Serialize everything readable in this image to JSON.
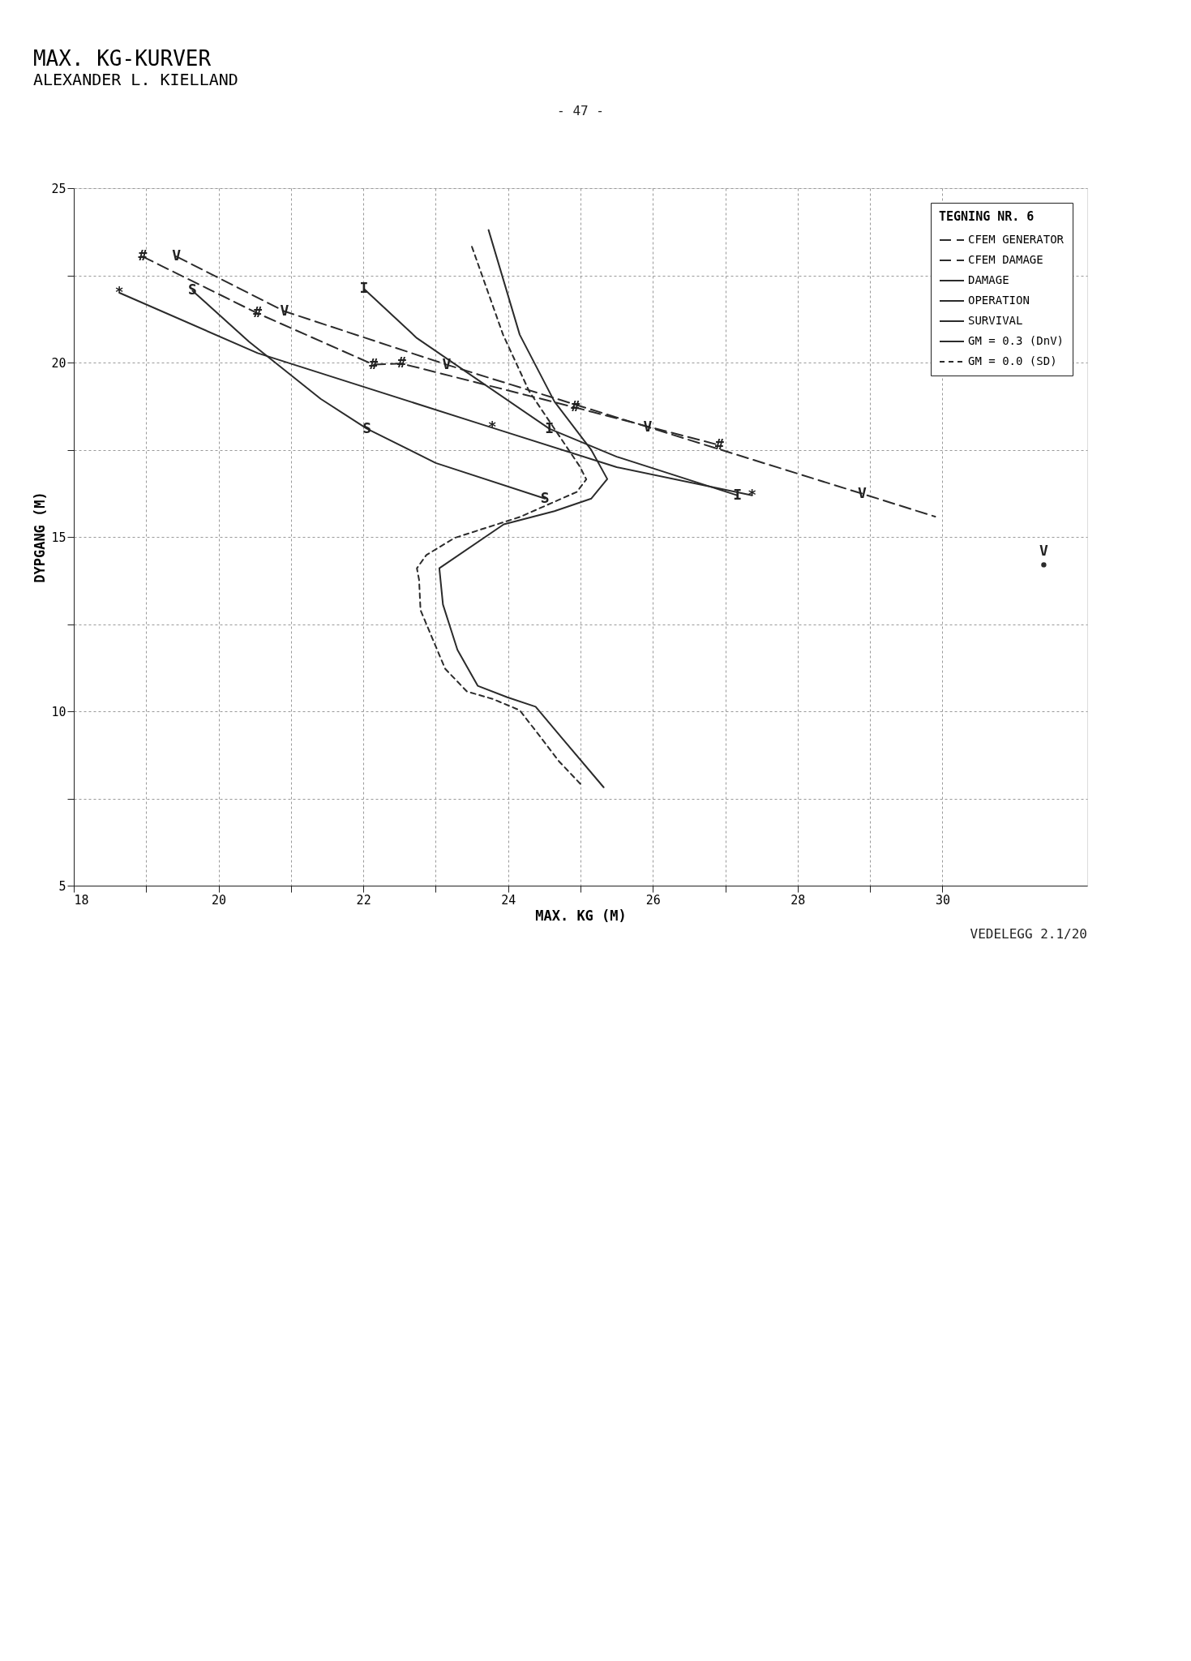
{
  "chart_data": {
    "type": "line",
    "title": "MAX. KG-KURVER",
    "subtitle": "ALEXANDER L. KIELLAND",
    "xlabel": "MAX. KG (M)",
    "ylabel": "DYPGANG (M)",
    "legend_title": "TEGNING NR. 6",
    "legend": "top right",
    "grid": true,
    "xlim": [
      18,
      32
    ],
    "xticks": [
      18,
      {
        "value": 19,
        "label": null
      },
      20,
      {
        "value": 21,
        "label": null
      },
      22,
      {
        "value": 23,
        "label": null
      },
      24,
      {
        "value": 25,
        "label": null
      },
      26,
      {
        "value": 27,
        "label": null
      },
      28,
      {
        "value": 29,
        "label": null
      },
      30
    ],
    "ylim": [
      5,
      25
    ],
    "yticks": [
      5,
      {
        "value": 7.5,
        "label": null
      },
      10,
      {
        "value": 12.5,
        "label": null
      },
      15,
      {
        "value": 17.5,
        "label": null
      },
      20,
      {
        "value": 22.5,
        "label": null
      },
      25
    ],
    "series": [
      {
        "name": "CFEM GENERATOR",
        "color": "#2b2b2b",
        "line_style": "dashed",
        "x": [
          19.42,
          20.91,
          23.15,
          25.93,
          28.89,
          29.9,
          30.6,
          31.4
        ],
        "values": [
          23.04,
          21.47,
          19.94,
          18.15,
          16.24,
          15.58,
          null,
          14.2
        ]
      },
      {
        "name": "CFEM DAMAGE",
        "color": "#2b2b2b",
        "line_style": "dashed",
        "x": [
          18.95,
          20.54,
          22.14,
          22.53,
          24.93,
          26.92
        ],
        "values": [
          23.04,
          21.41,
          19.94,
          19.97,
          18.71,
          17.63
        ]
      },
      {
        "name": "DAMAGE",
        "color": "#2b2b2b",
        "line_style": "solid",
        "x": [
          18.63,
          20.54,
          23.78,
          25.5,
          27.37
        ],
        "values": [
          22.0,
          20.27,
          18.13,
          17.0,
          16.19
        ]
      },
      {
        "name": "OPERATION",
        "color": "#2b2b2b",
        "line_style": "solid",
        "x": [
          22.01,
          22.74,
          24.57,
          25.5,
          27.17
        ],
        "values": [
          22.11,
          20.7,
          18.1,
          17.3,
          16.19
        ]
      },
      {
        "name": "SURVIVAL",
        "color": "#2b2b2b",
        "line_style": "solid",
        "x": [
          19.64,
          20.42,
          21.41,
          22.05,
          23.0,
          24.51
        ],
        "values": [
          22.06,
          20.6,
          18.96,
          18.1,
          17.12,
          16.1
        ]
      },
      {
        "name": "GM = 0.3 (DnV)",
        "color": "#2b2b2b",
        "line_style": "solid",
        "x": [
          23.73,
          24.16,
          24.64,
          25.15,
          25.37,
          25.15,
          24.64,
          23.94,
          23.05,
          23.1,
          23.3,
          23.58,
          23.99,
          24.38,
          24.74,
          25.32
        ],
        "values": [
          23.8,
          20.8,
          18.88,
          17.49,
          16.66,
          16.1,
          15.74,
          15.36,
          14.1,
          13.06,
          11.76,
          10.73,
          10.4,
          10.13,
          9.24,
          7.82
        ]
      },
      {
        "name": "GM = 0.0 (SD)",
        "color": "#2b2b2b",
        "line_style": "dotted",
        "x": [
          23.5,
          23.93,
          24.29,
          24.99,
          25.08,
          24.95,
          24.16,
          23.26,
          22.87,
          22.74,
          22.77,
          22.79,
          23.13,
          23.43,
          23.79,
          24.16,
          24.44,
          24.7,
          25.02
        ],
        "values": [
          23.32,
          20.8,
          19.18,
          17.02,
          16.65,
          16.29,
          15.57,
          14.97,
          14.48,
          14.1,
          13.77,
          12.9,
          11.22,
          10.57,
          10.35,
          10.03,
          9.28,
          8.57,
          7.87
        ]
      }
    ],
    "annotations": [
      "- 47 -",
      "VEDELEGG 2.1/20",
      {
        "text": "V",
        "x": 19.42,
        "y": 23.04
      },
      {
        "text": "V",
        "x": 20.91,
        "y": 21.47
      },
      {
        "text": "V",
        "x": 23.15,
        "y": 19.94
      },
      {
        "text": "V",
        "x": 25.93,
        "y": 18.15
      },
      {
        "text": "V",
        "x": 28.89,
        "y": 16.24
      },
      {
        "text": "V",
        "x": 31.4,
        "y": 14.2
      },
      {
        "text": "#",
        "x": 18.95,
        "y": 23.04
      },
      {
        "text": "#",
        "x": 20.54,
        "y": 21.41
      },
      {
        "text": "#",
        "x": 22.14,
        "y": 19.94
      },
      {
        "text": "#",
        "x": 22.53,
        "y": 19.97
      },
      {
        "text": "#",
        "x": 24.93,
        "y": 18.71
      },
      {
        "text": "#",
        "x": 26.92,
        "y": 17.63
      },
      {
        "text": "*",
        "x": 18.63,
        "y": 22.0
      },
      {
        "text": "*",
        "x": 23.78,
        "y": 18.13
      },
      {
        "text": "*",
        "x": 27.37,
        "y": 16.19
      },
      {
        "text": "I",
        "x": 22.01,
        "y": 22.11
      },
      {
        "text": "I",
        "x": 24.57,
        "y": 18.1
      },
      {
        "text": "I",
        "x": 27.17,
        "y": 16.19
      },
      {
        "text": "S",
        "x": 19.64,
        "y": 22.06
      },
      {
        "text": "S",
        "x": 22.05,
        "y": 18.1
      },
      {
        "text": "S",
        "x": 24.51,
        "y": 16.1
      }
    ]
  }
}
